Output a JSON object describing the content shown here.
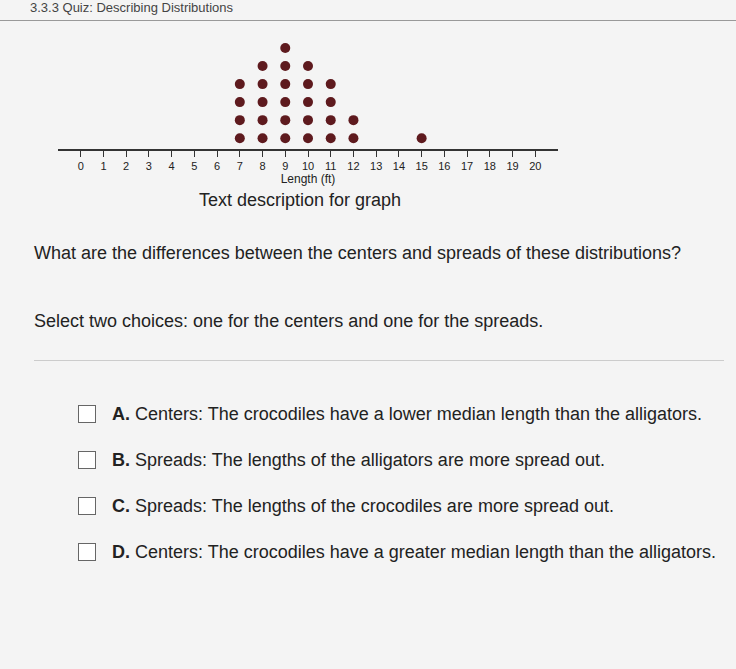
{
  "header": "3.3.3 Quiz: Describing Distributions",
  "chart_data": {
    "type": "dot",
    "x": [
      7,
      8,
      9,
      10,
      11,
      12,
      15
    ],
    "values": [
      4,
      5,
      6,
      5,
      4,
      2,
      1
    ],
    "xlabel": "Length (ft)",
    "xlim": [
      -1,
      21
    ],
    "xticks": [
      0,
      1,
      2,
      3,
      4,
      5,
      6,
      7,
      8,
      9,
      10,
      11,
      12,
      13,
      14,
      15,
      16,
      17,
      18,
      19,
      20
    ],
    "ylim": [
      0.4,
      7
    ],
    "color": "#5e1a1e",
    "marker": "circle",
    "grid": false,
    "tick_labels": "x"
  },
  "description_link": "Text description for graph",
  "question": "What are the differences between the centers and spreads of these distributions?",
  "instruction": "Select two choices: one for the centers and one for the spreads.",
  "choices": [
    {
      "letter": "A.",
      "text": "Centers: The crocodiles have a lower median length than the alligators."
    },
    {
      "letter": "B.",
      "text": "Spreads: The lengths of the alligators are more spread out."
    },
    {
      "letter": "C.",
      "text": "Spreads: The lengths of the crocodiles are more spread out."
    },
    {
      "letter": "D.",
      "text": "Centers: The crocodiles have a greater median length than the alligators."
    }
  ]
}
